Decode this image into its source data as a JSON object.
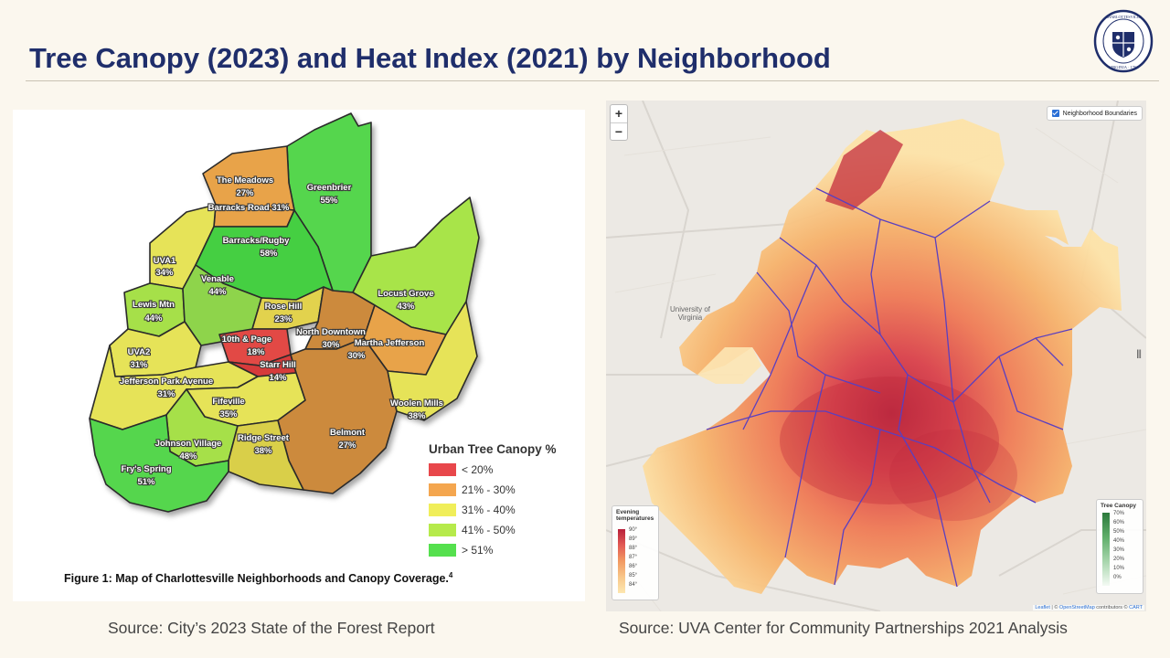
{
  "slide": {
    "title": "Tree Canopy (2023) and Heat Index (2021) by Neighborhood",
    "seal": {
      "top_text": "CHARLOTTESVILLE",
      "bottom_text": "VIRGINIA",
      "year": "1762"
    }
  },
  "canopy_map": {
    "neighborhoods": [
      {
        "name": "The Meadows",
        "canopy": "27%"
      },
      {
        "name": "Greenbrier",
        "canopy": "55%"
      },
      {
        "name": "Barracks Road 31%",
        "canopy": ""
      },
      {
        "name": "UVA1",
        "canopy": "34%"
      },
      {
        "name": "Barracks/Rugby",
        "canopy": "58%"
      },
      {
        "name": "Venable",
        "canopy": "44%"
      },
      {
        "name": "Lewis Mtn",
        "canopy": "44%"
      },
      {
        "name": "Locust Grove",
        "canopy": "43%"
      },
      {
        "name": "Rose Hill",
        "canopy": "23%"
      },
      {
        "name": "North Downtown",
        "canopy": "30%"
      },
      {
        "name": "10th & Page",
        "canopy": "18%"
      },
      {
        "name": "Martha Jefferson",
        "canopy": "30%"
      },
      {
        "name": "UVA2",
        "canopy": "31%"
      },
      {
        "name": "Starr Hill",
        "canopy": "14%"
      },
      {
        "name": "Jefferson Park Avenue",
        "canopy": "31%"
      },
      {
        "name": "Woolen Mills",
        "canopy": "38%"
      },
      {
        "name": "Fifeville",
        "canopy": "35%"
      },
      {
        "name": "Belmont",
        "canopy": "27%"
      },
      {
        "name": "Johnson Village",
        "canopy": "48%"
      },
      {
        "name": "Ridge Street",
        "canopy": "38%"
      },
      {
        "name": "Fry's Spring",
        "canopy": "51%"
      }
    ],
    "legend": {
      "title": "Urban Tree Canopy %",
      "items": [
        {
          "label": "< 20%",
          "color": "#e8474b"
        },
        {
          "label": "21% - 30%",
          "color": "#f4a64f"
        },
        {
          "label": "31% - 40%",
          "color": "#f0ee5a"
        },
        {
          "label": "41% - 50%",
          "color": "#b6ea4b"
        },
        {
          "label": "> 51%",
          "color": "#55e04e"
        }
      ]
    },
    "figure_caption": "Figure 1: Map of Charlottesville Neighborhoods and Canopy Coverage.",
    "footnote": "4",
    "source": "Source: City’s 2023 State of the Forest Report"
  },
  "heat_map": {
    "zoom_in": "+",
    "zoom_out": "−",
    "layer_toggle": "Neighborhood Boundaries",
    "place_label": "University of Virginia",
    "evening_legend": {
      "title_line1": "Evening",
      "title_line2": "temperatures",
      "ticks": [
        "90°",
        "89°",
        "88°",
        "87°",
        "86°",
        "85°",
        "84°"
      ]
    },
    "canopy_legend": {
      "title": "Tree Canopy",
      "ticks": [
        "70%",
        "60%",
        "50%",
        "40%",
        "30%",
        "20%",
        "10%",
        "0%"
      ]
    },
    "attribution": {
      "leaflet": "Leaflet",
      "osm": "OpenStreetMap",
      "mid": " contributors © ",
      "carto": "CART",
      "prefix": " | © "
    },
    "source": "Source: UVA Center for Community Partnerships 2021 Analysis"
  },
  "colors": {
    "title": "#1f2e6b",
    "heat_low": "#fde7b0",
    "heat_mid": "#f4a460",
    "heat_high": "#c8283c",
    "boundary": "#5a3fc0"
  }
}
